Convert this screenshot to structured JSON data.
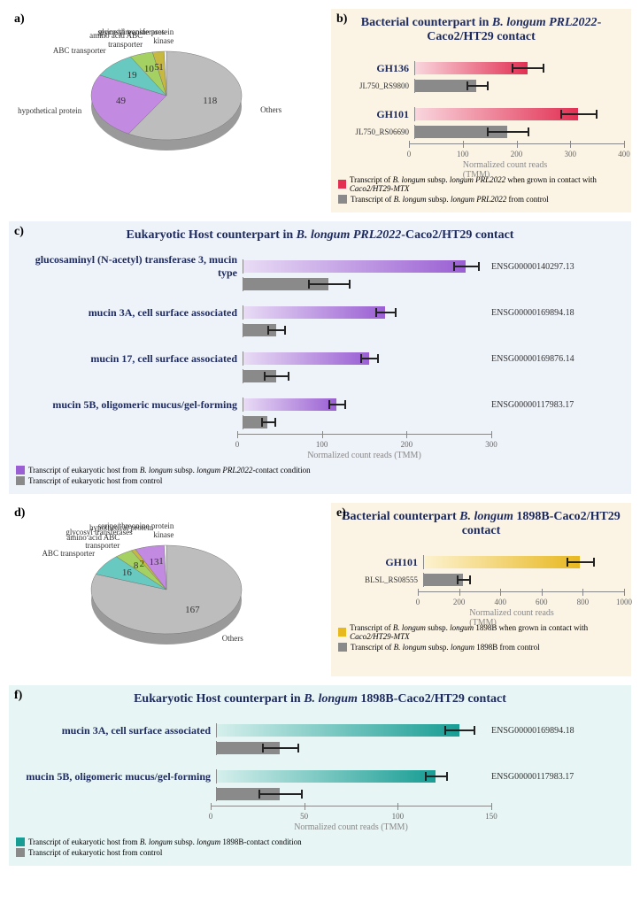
{
  "colors": {
    "title_navy": "#1d2a5e",
    "gray_bar": "#8a8a8a",
    "gradient_red_start": "#e23053",
    "gradient_red_end": "#f9d6dd",
    "gradient_purple_start": "#9a5fd3",
    "gradient_purple_end": "#e9dcf5",
    "gradient_yellow_start": "#e8b81f",
    "gradient_yellow_end": "#fdf2cf",
    "gradient_teal_start": "#189d94",
    "gradient_teal_end": "#d5efec",
    "pie_gray": "#bdbdbd",
    "pie_teal": "#67c9c0",
    "pie_green": "#a5d062",
    "pie_olive": "#c7b93f",
    "pie_purple": "#c28ae0",
    "pie_white": "#ffffff"
  },
  "panel_a": {
    "label": "a)",
    "slices": [
      {
        "name": "Others",
        "value": 118,
        "color_key": "pie_gray"
      },
      {
        "name": "hypothetical protein",
        "value": 49,
        "color_key": "pie_purple"
      },
      {
        "name": "ABC transporter",
        "value": 19,
        "color_key": "pie_teal"
      },
      {
        "name": "amino acid ABC transporter",
        "value": 10,
        "color_key": "pie_green"
      },
      {
        "name": "glycosyl transferases",
        "value": 5,
        "color_key": "pie_olive"
      },
      {
        "name": "serine/threonine protein kinase",
        "value": 1,
        "color_key": "pie_white"
      }
    ]
  },
  "panel_b": {
    "label": "b)",
    "title": "Bacterial counterpart in B. longum PRL2022-Caco2/HT29 contact",
    "x_axis": {
      "min": 0,
      "max": 400,
      "step": 100,
      "title": "Normalized count reads (TMM)"
    },
    "groups": [
      {
        "title": "GH136",
        "sub": "JL750_RS9800",
        "bars": [
          {
            "kind": "treat",
            "value": 220,
            "err": 30
          },
          {
            "kind": "control",
            "value": 120,
            "err": 20
          }
        ]
      },
      {
        "title": "GH101",
        "sub": "JL750_RS06690",
        "bars": [
          {
            "kind": "treat",
            "value": 320,
            "err": 35
          },
          {
            "kind": "control",
            "value": 180,
            "err": 40
          }
        ]
      }
    ],
    "legend": {
      "treat": "Transcript of B. longum subsp. longum PRL2022 when grown in contact with Caco2/HT29-MTX",
      "control": "Transcript of B. longum subsp. longum PRL2022 from control"
    }
  },
  "panel_c": {
    "label": "c)",
    "title": "Eukaryotic Host counterpart in B. longum PRL2022-Caco2/HT29 contact",
    "x_axis": {
      "min": 0,
      "max": 300,
      "step": 100,
      "title": "Normalized count reads (TMM)"
    },
    "rows": [
      {
        "name": "glucosaminyl (N-acetyl) transferase 3, mucin type",
        "id": "ENSG00000140297.13",
        "bars": [
          {
            "kind": "treat",
            "value": 275,
            "err": 15
          },
          {
            "kind": "control",
            "value": 105,
            "err": 25
          }
        ]
      },
      {
        "name": "mucin 3A, cell surface associated",
        "id": "ENSG00000169894.18",
        "bars": [
          {
            "kind": "treat",
            "value": 175,
            "err": 12
          },
          {
            "kind": "control",
            "value": 40,
            "err": 10
          }
        ]
      },
      {
        "name": "mucin 17, cell surface associated",
        "id": "ENSG00000169876.14",
        "bars": [
          {
            "kind": "treat",
            "value": 155,
            "err": 10
          },
          {
            "kind": "control",
            "value": 40,
            "err": 15
          }
        ]
      },
      {
        "name": "mucin 5B, oligomeric mucus/gel-forming",
        "id": "ENSG00000117983.17",
        "bars": [
          {
            "kind": "treat",
            "value": 115,
            "err": 10
          },
          {
            "kind": "control",
            "value": 30,
            "err": 8
          }
        ]
      }
    ],
    "legend": {
      "treat": "Transcript of eukaryotic host from B. longum subsp. longum PRL2022-contact condition",
      "control": "Transcript of eukaryotic host from control"
    }
  },
  "panel_d": {
    "label": "d)",
    "slices": [
      {
        "name": "Others",
        "value": 167,
        "color_key": "pie_gray"
      },
      {
        "name": "ABC transporter",
        "value": 16,
        "color_key": "pie_teal"
      },
      {
        "name": "amino acid ABC transporter",
        "value": 8,
        "color_key": "pie_green"
      },
      {
        "name": "glycosyl transferases",
        "value": 2,
        "color_key": "pie_olive"
      },
      {
        "name": "hypothetical protein",
        "value": 13,
        "color_key": "pie_purple"
      },
      {
        "name": "serine/threonine protein kinase",
        "value": 1,
        "color_key": "pie_white"
      }
    ]
  },
  "panel_e": {
    "label": "e)",
    "title": "Bacterial counterpart B. longum 1898B-Caco2/HT29 contact",
    "x_axis": {
      "min": 0,
      "max": 1000,
      "step": 200,
      "title": "Normalized count reads (TMM)"
    },
    "groups": [
      {
        "title": "GH101",
        "sub": "BLSL_RS08555",
        "bars": [
          {
            "kind": "treat",
            "value": 800,
            "err": 70
          },
          {
            "kind": "control",
            "value": 200,
            "err": 30
          }
        ]
      }
    ],
    "legend": {
      "treat": "Transcript of B. longum subsp. longum 1898B when grown in contact with Caco2/HT29-MTX",
      "control": "Transcript of B. longum subsp. longum 1898B from control"
    }
  },
  "panel_f": {
    "label": "f)",
    "title": "Eukaryotic Host counterpart in B. longum 1898B-Caco2/HT29 contact",
    "x_axis": {
      "min": 0,
      "max": 150,
      "step": 50,
      "title": "Normalized count reads (TMM)"
    },
    "rows": [
      {
        "name": "mucin 3A, cell surface associated",
        "id": "ENSG00000169894.18",
        "bars": [
          {
            "kind": "treat",
            "value": 135,
            "err": 8
          },
          {
            "kind": "control",
            "value": 35,
            "err": 10
          }
        ]
      },
      {
        "name": "mucin 5B, oligomeric mucus/gel-forming",
        "id": "ENSG00000117983.17",
        "bars": [
          {
            "kind": "treat",
            "value": 122,
            "err": 6
          },
          {
            "kind": "control",
            "value": 35,
            "err": 12
          }
        ]
      }
    ],
    "legend": {
      "treat": "Transcript of eukaryotic host from B. longum subsp. longum 1898B-contact condition",
      "control": "Transcript of eukaryotic host from control"
    }
  }
}
